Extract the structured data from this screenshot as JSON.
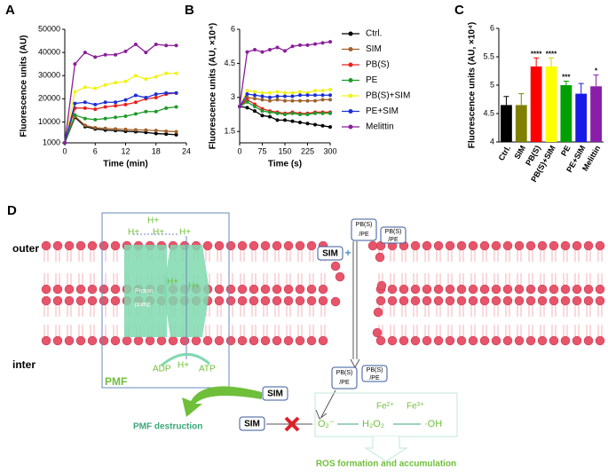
{
  "chart_data": [
    {
      "type": "line",
      "panel": "A",
      "xlabel": "Time (min)",
      "ylabel": "Fluorescence units (AU)",
      "x": [
        0,
        2,
        4,
        6,
        8,
        10,
        12,
        14,
        16,
        18,
        20,
        22
      ],
      "xlim": [
        0,
        24
      ],
      "xticks": [
        0,
        6,
        12,
        18,
        24
      ],
      "ylim": [
        1000,
        50000
      ],
      "yticks": [
        1000,
        10000,
        20000,
        30000,
        40000,
        50000
      ],
      "series": [
        {
          "name": "Ctrl.",
          "color": "#000000",
          "values": [
            1000,
            12000,
            8000,
            7000,
            6500,
            6300,
            6000,
            5800,
            5500,
            5000,
            4800,
            4500
          ]
        },
        {
          "name": "SIM",
          "color": "#a0602a",
          "values": [
            1000,
            12500,
            8500,
            7500,
            7200,
            7000,
            6800,
            6600,
            6500,
            6300,
            6000,
            5800
          ]
        },
        {
          "name": "PB(S)",
          "color": "#e8201e",
          "values": [
            1000,
            16000,
            16000,
            15500,
            16500,
            17000,
            17500,
            18500,
            20000,
            20500,
            22000,
            22500
          ]
        },
        {
          "name": "PE",
          "color": "#1e9a2a",
          "values": [
            1000,
            13000,
            11500,
            11000,
            11500,
            12000,
            12500,
            13500,
            14500,
            14500,
            16000,
            16500
          ]
        },
        {
          "name": "PB(S)+SIM",
          "color": "#f2f21a",
          "values": [
            1000,
            23000,
            25000,
            24500,
            26000,
            27000,
            27500,
            30000,
            28500,
            29500,
            31000,
            31000
          ]
        },
        {
          "name": "PE+SIM",
          "color": "#1a2fd6",
          "values": [
            1000,
            18000,
            18500,
            17500,
            18500,
            18500,
            19500,
            21500,
            20500,
            22000,
            22500,
            22500
          ]
        },
        {
          "name": "Melittin",
          "color": "#8a1e9a",
          "values": [
            1000,
            35000,
            40000,
            38000,
            39000,
            39000,
            40500,
            43500,
            40000,
            43500,
            43000,
            43000
          ]
        }
      ]
    },
    {
      "type": "line",
      "panel": "B",
      "xlabel": "Time (s)",
      "ylabel": "Fluorescence units (AU, ×10⁴)",
      "legend": true,
      "x": [
        0,
        25,
        50,
        75,
        100,
        125,
        150,
        175,
        200,
        225,
        250,
        275,
        300
      ],
      "xlim": [
        0,
        300
      ],
      "xticks": [
        0,
        75,
        150,
        225,
        300
      ],
      "ylim": [
        1,
        6
      ],
      "yticks": [
        1.5,
        3,
        4.5,
        6
      ],
      "series": [
        {
          "name": "Ctrl.",
          "color": "#000000",
          "values": [
            2.6,
            2.55,
            2.4,
            2.2,
            2.15,
            2.0,
            2.0,
            1.95,
            1.9,
            1.85,
            1.8,
            1.75,
            1.7
          ]
        },
        {
          "name": "SIM",
          "color": "#a0602a",
          "values": [
            2.6,
            3.0,
            2.95,
            2.9,
            2.85,
            2.9,
            2.85,
            2.85,
            2.85,
            2.85,
            2.85,
            2.9,
            2.9
          ]
        },
        {
          "name": "PB(S)",
          "color": "#e8201e",
          "values": [
            2.6,
            2.9,
            2.7,
            2.5,
            2.4,
            2.35,
            2.3,
            2.35,
            2.3,
            2.3,
            2.35,
            2.35,
            2.35
          ]
        },
        {
          "name": "PE",
          "color": "#1e9a2a",
          "values": [
            2.6,
            2.8,
            2.6,
            2.4,
            2.35,
            2.3,
            2.25,
            2.3,
            2.25,
            2.25,
            2.3,
            2.3,
            2.3
          ]
        },
        {
          "name": "PB(S)+SIM",
          "color": "#f2f21a",
          "values": [
            2.6,
            3.3,
            3.25,
            3.2,
            3.2,
            3.25,
            3.2,
            3.2,
            3.25,
            3.2,
            3.3,
            3.3,
            3.35
          ]
        },
        {
          "name": "PE+SIM",
          "color": "#1a2fd6",
          "values": [
            2.6,
            3.15,
            3.1,
            3.05,
            3.0,
            3.05,
            3.05,
            3.05,
            3.1,
            3.1,
            3.1,
            3.1,
            3.1
          ]
        },
        {
          "name": "Melittin",
          "color": "#8a1e9a",
          "values": [
            2.6,
            5.0,
            5.1,
            5.0,
            5.1,
            5.2,
            5.05,
            5.25,
            5.3,
            5.3,
            5.35,
            5.4,
            5.45
          ]
        }
      ]
    },
    {
      "type": "bar",
      "panel": "C",
      "ylabel": "Fluorescence units (AU, ×10⁴)",
      "categories": [
        "Ctrl.",
        "SIM",
        "PB(S)",
        "PB(S)+SIM",
        "PE",
        "PE+SIM",
        "Melittin"
      ],
      "values": [
        4.65,
        4.65,
        5.33,
        5.33,
        5.0,
        4.85,
        4.98
      ],
      "errors": [
        0.15,
        0.2,
        0.15,
        0.15,
        0.07,
        0.18,
        0.2
      ],
      "significance": [
        null,
        null,
        "****",
        "****",
        "***",
        null,
        "*"
      ],
      "colors": [
        "#000000",
        "#808000",
        "#ff0000",
        "#ffff00",
        "#00a000",
        "#1a1ae6",
        "#8a1eaa"
      ],
      "ylim": [
        4,
        6
      ],
      "yticks": [
        4,
        4.5,
        5,
        5.5,
        6
      ]
    }
  ],
  "diagram": {
    "panel": "D",
    "outer": "outer",
    "inter": "inter",
    "pmf": "PMF",
    "protons": [
      "H+",
      "H+",
      "H+",
      "H+",
      "H+",
      "H+",
      "H+"
    ],
    "pump": [
      "Proton",
      "pump"
    ],
    "adp": "ADP",
    "atp": "ATP",
    "sim": "SIM",
    "pbpe": [
      "PB(S)",
      "/PE"
    ],
    "pmf_destruction": "PMF destruction",
    "o2": "O₂⁻",
    "h2o2": "H₂O₂",
    "oh": "·OH",
    "fe2": "Fe²⁺",
    "fe3": "Fe³⁺",
    "ros": "ROS formation and accumulation"
  }
}
